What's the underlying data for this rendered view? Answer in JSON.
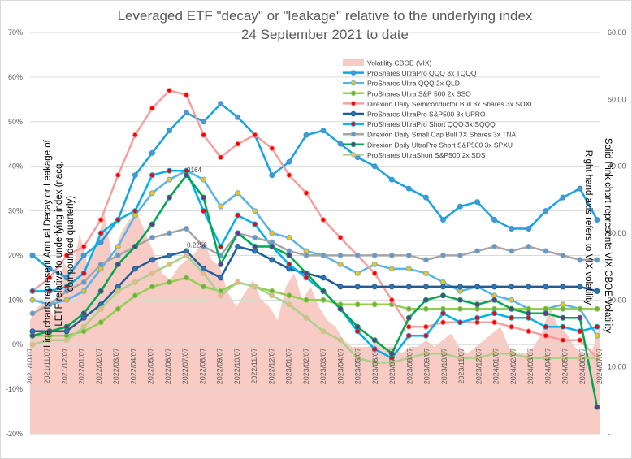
{
  "chart_data": {
    "type": "line",
    "title": "Leveraged ETF \"decay\" or \"leakage\" relative to the underlying index",
    "subtitle": "24 September 2021 to date",
    "ylabel_left": [
      "Line charts represent Annual Decay or Leakage of",
      "LETF relative to underlying index (nacq,",
      "compounded quarterly)"
    ],
    "ylabel_right": [
      "Solid Pink chart represents VIX CBOE Volatility",
      "Right hand axis refers to VIX volatility"
    ],
    "y_left": {
      "min": -20,
      "max": 70,
      "step": 10,
      "format": "percent"
    },
    "y_right": {
      "min": 0,
      "max": 60,
      "ticks": [
        10,
        20,
        30,
        40,
        50,
        60
      ],
      "labels": [
        "-",
        "10,00",
        "20,00",
        "30,00",
        "40,00",
        "50,00",
        "60,00"
      ]
    },
    "x_labels": [
      "2021/10/07",
      "2021/11/07",
      "2021/12/07",
      "2022/01/07",
      "2022/02/07",
      "2022/03/07",
      "2022/04/07",
      "2022/05/07",
      "2022/06/07",
      "2022/07/07",
      "2022/08/07",
      "2022/09/07",
      "2022/10/07",
      "2022/11/07",
      "2022/12/07",
      "2023/01/07",
      "2023/02/07",
      "2023/03/07",
      "2023/04/07",
      "2023/05/07",
      "2023/06/07",
      "2023/07/07",
      "2023/08/07",
      "2023/09/07",
      "2023/10/07",
      "2023/11/07",
      "2023/12/07",
      "2024/01/07",
      "2024/02/07",
      "2024/03/07",
      "2024/04/07",
      "2024/05/07",
      "2024/06/07",
      "2024/07/07"
    ],
    "annotations": [
      {
        "text": "9164",
        "x": "2022/07/07",
        "y": 39.2
      },
      {
        "text": "0.2256",
        "x": "2022/07/07",
        "y": 22.4
      }
    ],
    "vix": {
      "name": "Volatility CBOE (VIX)",
      "color": "#f8cbc4",
      "values": [
        17,
        19,
        20,
        17,
        26,
        23,
        30,
        25,
        28,
        33,
        26,
        30,
        32,
        33,
        30,
        27,
        24,
        23,
        25,
        26,
        27,
        29,
        26,
        25,
        21,
        19,
        21,
        23,
        20,
        19,
        17,
        22,
        24,
        20,
        22,
        19,
        17,
        16,
        14,
        13,
        13,
        13,
        14,
        13,
        13,
        12,
        13,
        13,
        14,
        13,
        14,
        15,
        13,
        12,
        13,
        14,
        15,
        16,
        13,
        12,
        12,
        13,
        15,
        19,
        16,
        15,
        13,
        12,
        12,
        16
      ]
    },
    "series": [
      {
        "name": "ProShares UltraPro QQQ   3x   TQQQ",
        "color": "#17a2e0",
        "marker": "#5a8fc9",
        "values": [
          20,
          17,
          15,
          20,
          23,
          28,
          38,
          43,
          48,
          52,
          50,
          54,
          51,
          47,
          38,
          41,
          47,
          48,
          45,
          42,
          40,
          37,
          35,
          33,
          28,
          31,
          32,
          28,
          26,
          26,
          30,
          33,
          35,
          28
        ]
      },
      {
        "name": "ProShares Ultra QQQ   2x   QLD",
        "color": "#59b3e6",
        "marker": "#ffc000",
        "values": [
          10,
          9,
          10,
          12,
          17,
          22,
          29,
          34,
          37,
          39,
          37,
          31,
          34,
          30,
          25,
          24,
          21,
          20,
          18,
          16,
          18,
          17,
          17,
          16,
          14,
          12,
          13,
          11,
          10,
          8,
          8,
          9,
          8,
          2
        ]
      },
      {
        "name": "ProShares Ultra S&P 500   2x   SSO",
        "color": "#92d050",
        "marker": "#70ad47",
        "values": [
          2,
          2,
          2,
          3,
          5,
          8,
          11,
          13,
          14,
          15,
          13,
          12,
          14,
          13,
          12,
          11,
          10,
          10,
          9,
          9,
          9,
          9,
          8,
          8,
          8,
          8,
          8,
          8,
          8,
          8,
          8,
          8,
          8,
          8
        ]
      },
      {
        "name": "Direxion Daily Semiconductor Bull 3x Shares   3x   SOXL",
        "color": "#f4a0a0",
        "marker": "#ff0000",
        "values": [
          12,
          15,
          20,
          22,
          28,
          38,
          47,
          53,
          57,
          56,
          47,
          42,
          45,
          47,
          44,
          38,
          34,
          28,
          24,
          20,
          16,
          10,
          4,
          4,
          5,
          5,
          5,
          5,
          4,
          3,
          2,
          1,
          1,
          -3
        ]
      },
      {
        "name": "ProShares UltraPro S&P500   3x   UPRO",
        "color": "#1f5c99",
        "marker": "#2e75b6",
        "values": [
          3,
          3,
          3,
          6,
          9,
          13,
          17,
          19,
          20,
          21,
          17,
          15,
          22,
          21,
          19,
          17,
          16,
          15,
          13,
          13,
          13,
          13,
          13,
          13,
          13,
          13,
          13,
          13,
          13,
          13,
          13,
          13,
          13,
          12
        ]
      },
      {
        "name": "ProShares UltraPro Short QQQ   3x   SQQQ",
        "color": "#00b0f0",
        "marker": "#ff0000",
        "values": [
          12,
          12,
          13,
          16,
          25,
          28,
          30,
          38,
          39,
          39,
          30,
          22,
          29,
          27,
          22,
          18,
          15,
          12,
          8,
          3,
          -1,
          -3,
          2,
          2,
          7,
          5,
          6,
          7,
          6,
          6,
          4,
          4,
          3,
          4
        ]
      },
      {
        "name": "Direxion Daily Small Cap Bull 3X Shares   3x   TNA",
        "color": "#a5a5a5",
        "marker": "#5b9bd5",
        "values": [
          7,
          9,
          12,
          14,
          18,
          20,
          22,
          24,
          25,
          26,
          22,
          20,
          25,
          24,
          23,
          21,
          20,
          20,
          20,
          20,
          20,
          20,
          20,
          19,
          20,
          20,
          21,
          22,
          21,
          22,
          21,
          20,
          19,
          19
        ]
      },
      {
        "name": "Direxion Daily UltraPro Short S&P500   3x   SPXU",
        "color": "#00a650",
        "marker": "#7030a0",
        "values": [
          2,
          3,
          4,
          7,
          12,
          18,
          22,
          27,
          33,
          38,
          33,
          18,
          25,
          22,
          22,
          20,
          16,
          12,
          8,
          4,
          1,
          -2,
          6,
          10,
          11,
          10,
          9,
          10,
          8,
          7,
          7,
          6,
          6,
          -14
        ]
      },
      {
        "name": "ProShares UltraShort S&P500   2x   SDS",
        "color": "#a9d18e",
        "marker": "#f4b183",
        "values": [
          0,
          1,
          1,
          4,
          8,
          12,
          14,
          16,
          18,
          20,
          16,
          11,
          14,
          13,
          11,
          9,
          6,
          3,
          1,
          -3,
          -4,
          -4,
          -3,
          -2,
          -2,
          -3,
          -3,
          -2,
          -2,
          -3,
          -3,
          -3,
          -3,
          -3
        ]
      }
    ]
  }
}
